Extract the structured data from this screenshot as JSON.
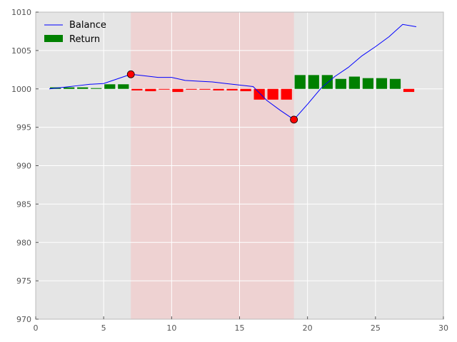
{
  "chart_data": {
    "type": "bar+line",
    "title": "",
    "xlabel": "",
    "ylabel": "",
    "xlim": [
      0,
      30
    ],
    "ylim": [
      970,
      1010
    ],
    "xticks": [
      "0",
      "5",
      "10",
      "15",
      "20",
      "25",
      "30"
    ],
    "yticks": [
      "970",
      "975",
      "980",
      "985",
      "990",
      "995",
      "1000",
      "1005",
      "1010"
    ],
    "grid": true,
    "legend": {
      "placement": "top-left",
      "entries": [
        {
          "label": "Balance",
          "kind": "line",
          "color": "#0000ff"
        },
        {
          "label": "Return",
          "kind": "bar",
          "color": "#008000"
        }
      ]
    },
    "shaded_region": {
      "x_start": 7,
      "x_end": 19,
      "color": "#ffb0b0"
    },
    "series": [
      {
        "name": "Balance",
        "type": "line",
        "color": "#0000ff",
        "x": [
          1,
          2,
          3,
          4,
          5,
          6,
          7,
          8,
          9,
          10,
          11,
          12,
          13,
          14,
          15,
          16,
          17,
          18,
          19,
          20,
          21,
          22,
          23,
          24,
          25,
          26,
          27,
          28
        ],
        "y": [
          1000.0,
          1000.2,
          1000.4,
          1000.6,
          1000.7,
          1001.3,
          1001.9,
          1001.7,
          1001.5,
          1001.5,
          1001.1,
          1001.0,
          1000.9,
          1000.7,
          1000.5,
          1000.3,
          998.5,
          997.2,
          996.0,
          998.0,
          1000.1,
          1001.6,
          1002.8,
          1004.3,
          1005.5,
          1006.8,
          1008.4,
          1008.1
        ]
      },
      {
        "name": "Return",
        "type": "bar",
        "color_positive": "#008000",
        "color_negative": "#ff0000",
        "x": [
          1,
          2,
          3,
          4,
          5,
          6,
          7,
          8,
          9,
          10,
          11,
          12,
          13,
          14,
          15,
          16,
          17,
          18,
          19,
          20,
          21,
          22,
          23,
          24,
          25,
          26,
          27
        ],
        "values": [
          0.2,
          0.2,
          0.2,
          0.1,
          0.6,
          0.6,
          -0.2,
          -0.3,
          -0.05,
          -0.4,
          -0.1,
          -0.1,
          -0.2,
          -0.2,
          -0.3,
          -1.4,
          -1.4,
          -1.4,
          1.8,
          1.8,
          1.8,
          1.3,
          1.6,
          1.4,
          1.4,
          1.3,
          -0.4
        ]
      }
    ],
    "markers": [
      {
        "x": 7,
        "y": 1001.9,
        "color": "#ff0000"
      },
      {
        "x": 19,
        "y": 996.0,
        "color": "#ff0000"
      }
    ]
  }
}
